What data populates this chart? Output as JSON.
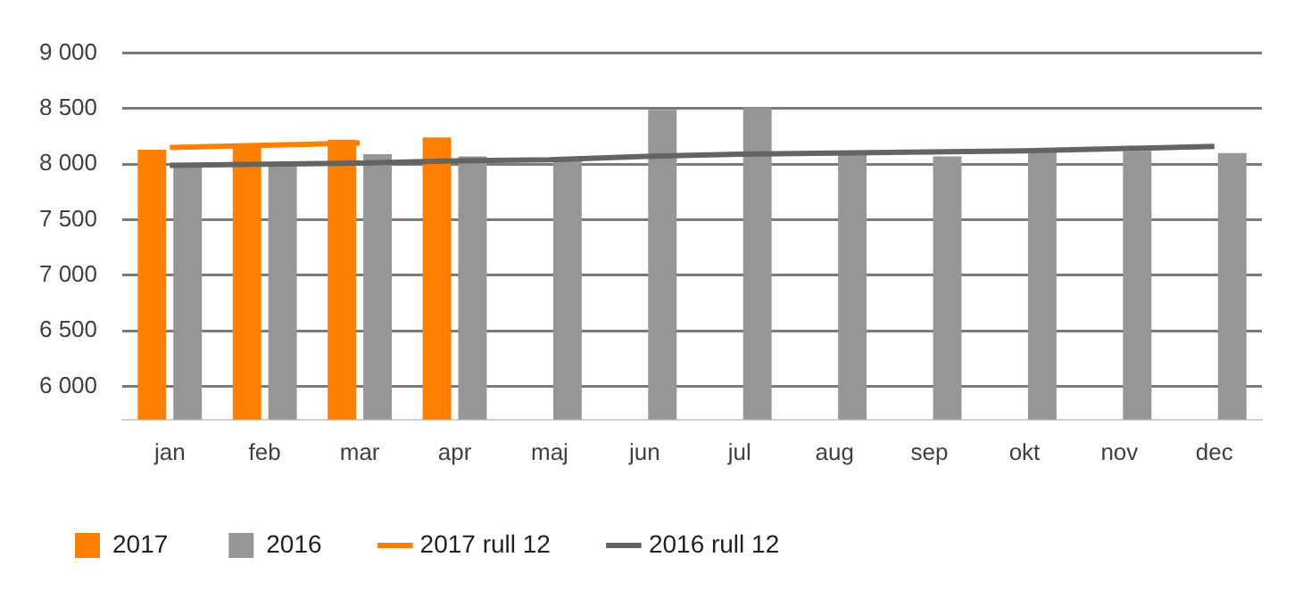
{
  "chart_data": {
    "type": "bar",
    "categories": [
      "jan",
      "feb",
      "mar",
      "apr",
      "maj",
      "jun",
      "jul",
      "aug",
      "sep",
      "okt",
      "nov",
      "dec"
    ],
    "series": [
      {
        "name": "2017",
        "color": "#ff8000",
        "values": [
          8130,
          8180,
          8220,
          8240,
          null,
          null,
          null,
          null,
          null,
          null,
          null,
          null
        ]
      },
      {
        "name": "2016",
        "color": "#969696",
        "values": [
          8000,
          8000,
          8090,
          8070,
          8040,
          8490,
          8510,
          8090,
          8070,
          8110,
          8120,
          8100
        ]
      },
      {
        "name": "2017 rull 12",
        "type": "line",
        "color": "#ff8000",
        "values": [
          8150,
          8170,
          8190,
          null,
          null,
          null,
          null,
          null,
          null,
          null,
          null,
          null
        ]
      },
      {
        "name": "2016 rull 12",
        "type": "line",
        "color": "#646464",
        "values": [
          7990,
          8000,
          8010,
          8030,
          8040,
          8070,
          8090,
          8100,
          8110,
          8120,
          8140,
          8160
        ]
      }
    ],
    "ylim": [
      5700,
      9000
    ],
    "yticks": [
      {
        "value": 6000,
        "label": "6 000"
      },
      {
        "value": 6500,
        "label": "6 500"
      },
      {
        "value": 7000,
        "label": "7 000"
      },
      {
        "value": 7500,
        "label": "7 500"
      },
      {
        "value": 8000,
        "label": "8 000"
      },
      {
        "value": 8500,
        "label": "8 500"
      },
      {
        "value": 9000,
        "label": "9 000"
      }
    ],
    "grid": "y",
    "legend": "bottom",
    "marker": "none"
  }
}
